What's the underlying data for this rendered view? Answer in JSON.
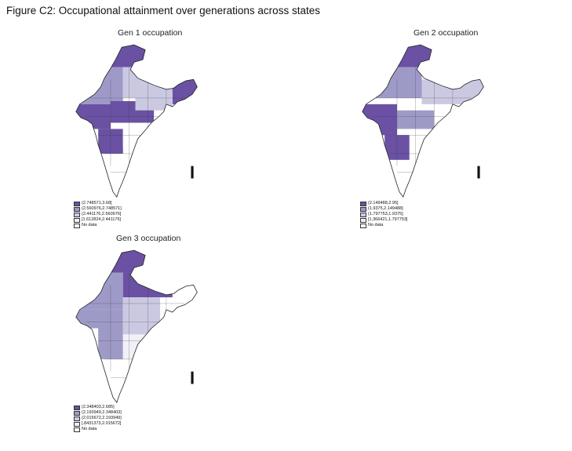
{
  "figure_title": "Figure C2: Occupational attainment over generations across states",
  "colors": {
    "c4": "#6a51a3",
    "c3": "#9e9ac8",
    "c2": "#cbc9e2",
    "c1": "#f2f0f7",
    "nodata": "#ffffff",
    "border": "#222222"
  },
  "panels": [
    {
      "title": "Gen 1 occupation",
      "legend": [
        "(2.748571,3.68]",
        "(2.560976,2.748571]",
        "(2.441176,2.560976]",
        "[1.612824,2.441176]",
        "No data"
      ]
    },
    {
      "title": "Gen 2 occupation",
      "legend": [
        "(2.149488,2.95]",
        "(1.9375,2.149488]",
        "(1.797753,1.9375]",
        "[1.366421,1.797753]",
        "No data"
      ]
    },
    {
      "title": "Gen 3 occupation",
      "legend": [
        "(2.348403,2.685]",
        "(2.193949,2.348403]",
        "(2.015672,2.193949]",
        "[.8431373,2.015672]",
        "No data"
      ]
    }
  ]
}
